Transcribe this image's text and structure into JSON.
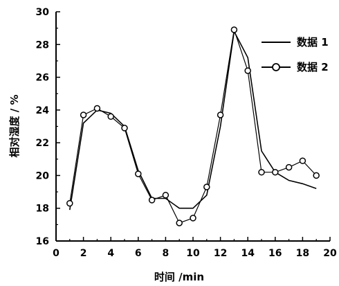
{
  "chart_data": {
    "type": "line",
    "xlabel": "时间 /min",
    "ylabel": "相对湿度 / %",
    "xlim": [
      0,
      20
    ],
    "ylim": [
      16,
      30
    ],
    "xticks": [
      0,
      2,
      4,
      6,
      8,
      10,
      12,
      14,
      16,
      18,
      20
    ],
    "yticks": [
      16,
      18,
      20,
      22,
      24,
      26,
      28,
      30
    ],
    "grid": false,
    "legend_position": "top-right",
    "series": [
      {
        "name": "数据 1",
        "marker": "none",
        "color": "#000000",
        "x": [
          1,
          2,
          3,
          4,
          5,
          6,
          7,
          8,
          9,
          10,
          11,
          12,
          13,
          14,
          15,
          16,
          17,
          18,
          19
        ],
        "y": [
          17.9,
          23.2,
          24.0,
          23.8,
          23.0,
          20.3,
          18.6,
          18.6,
          18.0,
          18.0,
          18.8,
          23.0,
          28.8,
          27.2,
          21.5,
          20.2,
          19.7,
          19.5,
          19.2
        ]
      },
      {
        "name": "数据 2",
        "marker": "circle",
        "color": "#000000",
        "x": [
          1,
          2,
          3,
          4,
          5,
          6,
          7,
          8,
          9,
          10,
          11,
          12,
          13,
          14,
          15,
          16,
          17,
          18,
          19
        ],
        "y": [
          18.3,
          23.7,
          24.1,
          23.6,
          22.9,
          20.1,
          18.5,
          18.8,
          17.1,
          17.4,
          19.3,
          23.7,
          28.9,
          26.4,
          20.2,
          20.2,
          20.5,
          20.9,
          20.0
        ]
      }
    ]
  }
}
